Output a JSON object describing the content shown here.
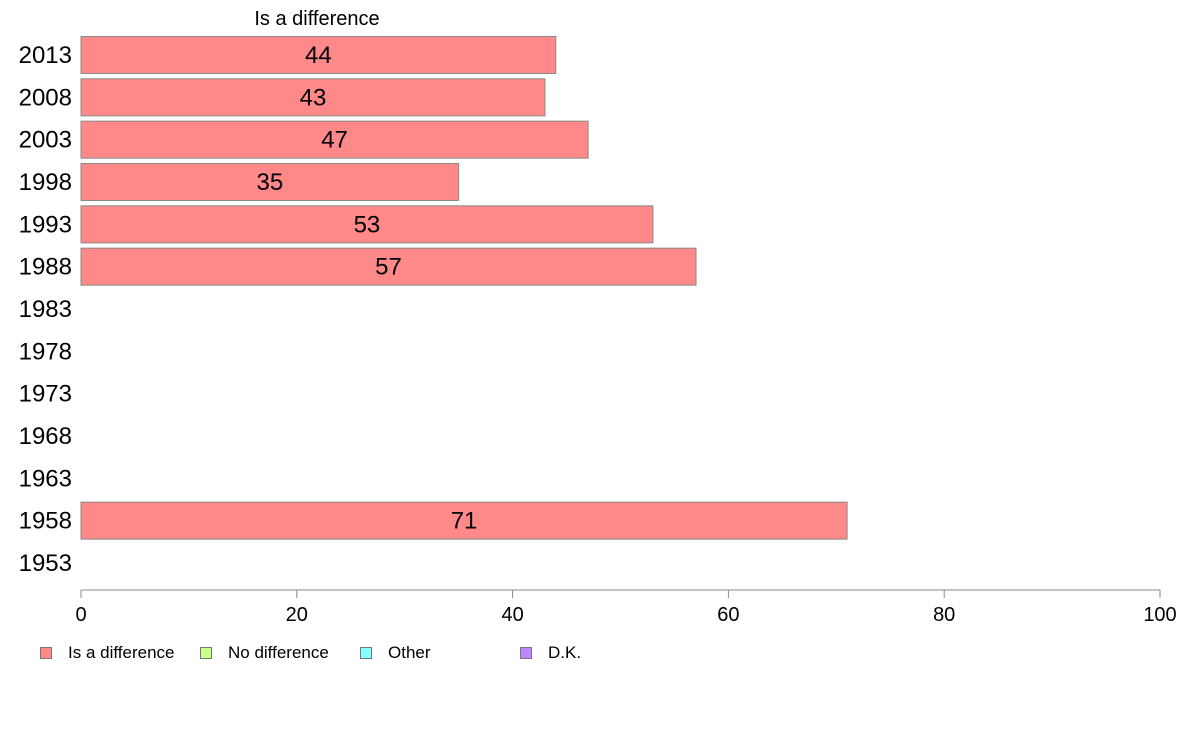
{
  "chart_data": {
    "type": "bar",
    "orientation": "horizontal",
    "title": "Is a difference",
    "categories": [
      "2013",
      "2008",
      "2003",
      "1998",
      "1993",
      "1988",
      "1983",
      "1978",
      "1973",
      "1968",
      "1963",
      "1958",
      "1953"
    ],
    "series": [
      {
        "name": "Is a difference",
        "color": "#ff8888",
        "values": [
          44,
          43,
          47,
          35,
          53,
          57,
          null,
          null,
          null,
          null,
          null,
          71,
          null
        ],
        "display_labels": [
          "44",
          "43",
          "47",
          "35",
          "53",
          "57",
          "",
          "",
          "",
          "",
          "",
          "71",
          ""
        ]
      }
    ],
    "xlim": [
      0,
      100
    ],
    "xticks": [
      "0",
      "20",
      "40",
      "60",
      "80",
      "100"
    ],
    "grid": false,
    "legend": {
      "placement": "bottom",
      "entries": [
        {
          "label": "Is a difference",
          "color": "#ff8888"
        },
        {
          "label": "No difference",
          "color": "#ccff88"
        },
        {
          "label": "Other",
          "color": "#88ffff"
        },
        {
          "label": "D.K.",
          "color": "#bb88ff"
        }
      ]
    }
  }
}
